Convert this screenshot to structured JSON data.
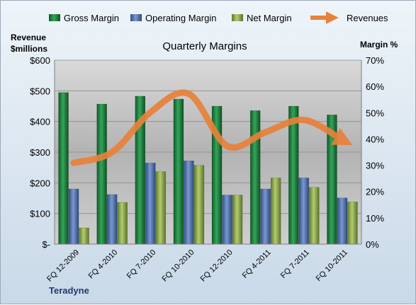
{
  "chart_data": {
    "type": "bar",
    "title": "Quarterly Margins",
    "company": "Teradyne",
    "ylabel_left": [
      "Revenue",
      "$millions"
    ],
    "ylabel_right": "Margin %",
    "y_left_ticks": [
      "$-",
      "$100",
      "$200",
      "$300",
      "$400",
      "$500",
      "$600"
    ],
    "y_right_ticks": [
      "0%",
      "10%",
      "20%",
      "30%",
      "40%",
      "50%",
      "60%",
      "70%"
    ],
    "ylim_left": [
      0,
      600
    ],
    "ylim_right": [
      0,
      70
    ],
    "categories": [
      "FQ 12-2009",
      "FQ 4-2010",
      "FQ 7-2010",
      "FQ 10-2010",
      "FQ 12-2010",
      "FQ 4-2011",
      "FQ 7-2011",
      "FQ 10-2011"
    ],
    "series": [
      {
        "name": "Gross Margin",
        "axis": "right",
        "color": "#1e7a3c",
        "values": [
          57.7,
          53.3,
          56.3,
          55.2,
          52.5,
          50.8,
          52.5,
          49.2
        ]
      },
      {
        "name": "Operating Margin",
        "axis": "right",
        "color": "#4f6fa8",
        "values": [
          21.0,
          18.9,
          30.9,
          31.7,
          18.7,
          21.0,
          25.2,
          17.6
        ]
      },
      {
        "name": "Net Margin",
        "axis": "right",
        "color": "#8aa84a",
        "values": [
          6.2,
          15.9,
          27.6,
          30.0,
          18.7,
          25.2,
          21.6,
          16.1
        ]
      }
    ],
    "revenues": {
      "name": "Revenues",
      "axis": "left",
      "color": "#e8813a",
      "values": [
        265,
        300,
        430,
        490,
        320,
        365,
        405,
        340
      ]
    },
    "legend_position": "top",
    "grid": true
  }
}
